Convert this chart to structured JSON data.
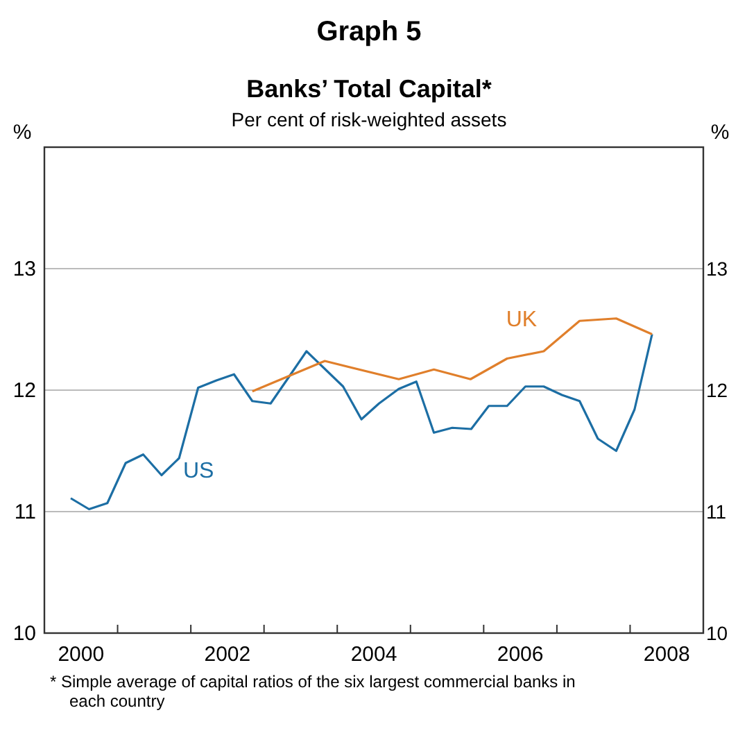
{
  "chart_data": {
    "type": "line",
    "title": "Graph 5",
    "subtitle": "Banks’ Total Capital*",
    "ylabel": "%",
    "y2label": "%",
    "annotations": [
      "Per cent of risk-weighted assets",
      "* Simple average of capital ratios of the six largest commercial banks in each country"
    ],
    "xlim": [
      2000,
      2009
    ],
    "xticks": [
      {
        "value": 2000.5,
        "label": "2000"
      },
      {
        "value": 2001,
        "label": null
      },
      {
        "value": 2002,
        "label": null
      },
      {
        "value": 2002.5,
        "label": "2002"
      },
      {
        "value": 2003,
        "label": null
      },
      {
        "value": 2004,
        "label": null
      },
      {
        "value": 2004.5,
        "label": "2004"
      },
      {
        "value": 2005,
        "label": null
      },
      {
        "value": 2006,
        "label": null
      },
      {
        "value": 2006.5,
        "label": "2006"
      },
      {
        "value": 2007,
        "label": null
      },
      {
        "value": 2008,
        "label": null
      },
      {
        "value": 2008.5,
        "label": "2008"
      }
    ],
    "ylim": [
      10,
      14
    ],
    "yticks": [
      10,
      11,
      12,
      13
    ],
    "y2lim": [
      10,
      14
    ],
    "y2ticks": [
      10,
      11,
      12,
      13
    ],
    "grid": "y",
    "marker": "none",
    "line_style": "solid",
    "series": [
      {
        "name": "US",
        "color": "#1c6ea4",
        "x": [
          2000.36,
          2000.61,
          2000.86,
          2001.11,
          2001.35,
          2001.6,
          2001.84,
          2002.1,
          2002.35,
          2002.59,
          2002.84,
          2003.09,
          2003.33,
          2003.58,
          2004.08,
          2004.33,
          2004.57,
          2004.84,
          2005.08,
          2005.32,
          2005.57,
          2005.83,
          2006.07,
          2006.32,
          2006.57,
          2006.82,
          2007.07,
          2007.31,
          2007.56,
          2007.81,
          2008.06,
          2008.3
        ],
        "values": [
          11.11,
          11.02,
          11.07,
          11.4,
          11.47,
          11.3,
          11.44,
          12.02,
          12.08,
          12.13,
          11.91,
          11.89,
          12.1,
          12.32,
          12.03,
          11.76,
          11.89,
          12.01,
          12.07,
          11.65,
          11.69,
          11.68,
          11.87,
          11.87,
          12.03,
          12.03,
          11.96,
          11.91,
          11.6,
          11.5,
          11.84,
          12.46
        ]
      },
      {
        "name": "UK",
        "color": "#e07f2b",
        "x": [
          2002.84,
          2003.83,
          2004.84,
          2005.32,
          2005.82,
          2006.32,
          2006.82,
          2007.31,
          2007.81,
          2008.3
        ],
        "values": [
          11.99,
          12.24,
          12.09,
          12.17,
          12.09,
          12.26,
          12.32,
          12.57,
          12.59,
          12.46
        ]
      }
    ]
  }
}
